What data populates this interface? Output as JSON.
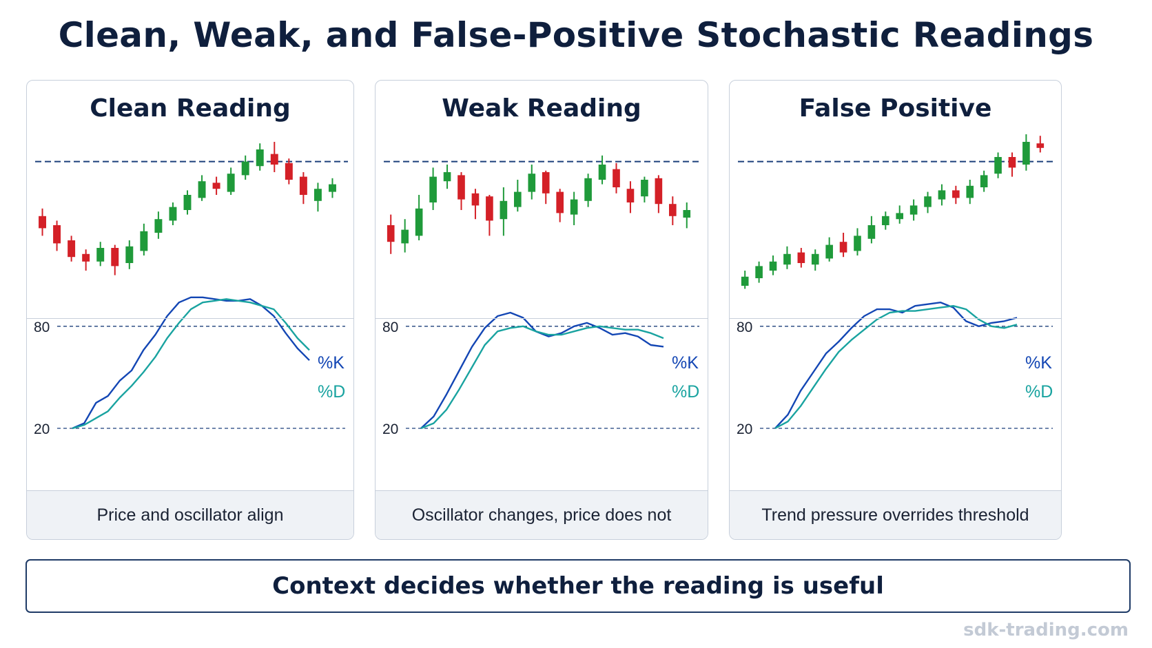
{
  "title": "Clean, Weak, and False-Positive Stochastic Readings",
  "banner": "Context decides whether the reading is useful",
  "watermark": "sdk-trading.com",
  "colors": {
    "bull": "#1f9a3a",
    "bear": "#d42027",
    "k_line": "#1346b4",
    "d_line": "#19a3a0",
    "dashed": "#1b3f7a"
  },
  "chart_data": [
    {
      "type": "candlestick+line",
      "title": "Clean Reading",
      "caption": "Price and oscillator align",
      "price_resistance": 92,
      "price_ylim": [
        0,
        100
      ],
      "candles": [
        {
          "o": 56,
          "c": 48,
          "h": 61,
          "l": 43
        },
        {
          "o": 50,
          "c": 38,
          "h": 53,
          "l": 33
        },
        {
          "o": 40,
          "c": 29,
          "h": 43,
          "l": 26
        },
        {
          "o": 31,
          "c": 26,
          "h": 34,
          "l": 20
        },
        {
          "o": 26,
          "c": 35,
          "h": 39,
          "l": 23
        },
        {
          "o": 35,
          "c": 23,
          "h": 37,
          "l": 17
        },
        {
          "o": 25,
          "c": 36,
          "h": 40,
          "l": 21
        },
        {
          "o": 33,
          "c": 46,
          "h": 51,
          "l": 30
        },
        {
          "o": 45,
          "c": 54,
          "h": 59,
          "l": 41
        },
        {
          "o": 53,
          "c": 62,
          "h": 65,
          "l": 50
        },
        {
          "o": 60,
          "c": 70,
          "h": 73,
          "l": 57
        },
        {
          "o": 68,
          "c": 79,
          "h": 83,
          "l": 66
        },
        {
          "o": 78,
          "c": 74,
          "h": 82,
          "l": 70
        },
        {
          "o": 72,
          "c": 84,
          "h": 88,
          "l": 70
        },
        {
          "o": 83,
          "c": 92,
          "h": 96,
          "l": 80
        },
        {
          "o": 89,
          "c": 100,
          "h": 104,
          "l": 86
        },
        {
          "o": 97,
          "c": 90,
          "h": 105,
          "l": 85
        },
        {
          "o": 91,
          "c": 80,
          "h": 94,
          "l": 77
        },
        {
          "o": 82,
          "c": 70,
          "h": 85,
          "l": 64
        },
        {
          "o": 66,
          "c": 74,
          "h": 78,
          "l": 59
        },
        {
          "o": 72,
          "c": 77,
          "h": 81,
          "l": 68
        }
      ],
      "osc_levels": [
        80,
        20
      ],
      "series": [
        {
          "name": "%K",
          "values": [
            20,
            23,
            35,
            39,
            48,
            54,
            66,
            75,
            86,
            94,
            97,
            97,
            96,
            95,
            95,
            96,
            92,
            86,
            76,
            67,
            60
          ]
        },
        {
          "name": "%D",
          "values": [
            20,
            22,
            26,
            30,
            38,
            45,
            53,
            62,
            73,
            82,
            90,
            94,
            95,
            96,
            95,
            94,
            92,
            90,
            82,
            73,
            66
          ]
        }
      ]
    },
    {
      "type": "candlestick+line",
      "title": "Weak Reading",
      "caption": "Oscillator changes, price does not",
      "price_resistance": 92,
      "price_ylim": [
        0,
        100
      ],
      "candles": [
        {
          "o": 50,
          "c": 39,
          "h": 57,
          "l": 31
        },
        {
          "o": 38,
          "c": 47,
          "h": 54,
          "l": 32
        },
        {
          "o": 43,
          "c": 61,
          "h": 70,
          "l": 40
        },
        {
          "o": 65,
          "c": 82,
          "h": 88,
          "l": 60
        },
        {
          "o": 79,
          "c": 85,
          "h": 90,
          "l": 74
        },
        {
          "o": 83,
          "c": 67,
          "h": 85,
          "l": 60
        },
        {
          "o": 71,
          "c": 63,
          "h": 74,
          "l": 54
        },
        {
          "o": 69,
          "c": 53,
          "h": 70,
          "l": 43
        },
        {
          "o": 54,
          "c": 66,
          "h": 75,
          "l": 43
        },
        {
          "o": 62,
          "c": 72,
          "h": 80,
          "l": 59
        },
        {
          "o": 72,
          "c": 84,
          "h": 90,
          "l": 67
        },
        {
          "o": 85,
          "c": 71,
          "h": 86,
          "l": 64
        },
        {
          "o": 72,
          "c": 58,
          "h": 74,
          "l": 52
        },
        {
          "o": 57,
          "c": 67,
          "h": 72,
          "l": 50
        },
        {
          "o": 66,
          "c": 81,
          "h": 84,
          "l": 62
        },
        {
          "o": 80,
          "c": 90,
          "h": 96,
          "l": 77
        },
        {
          "o": 87,
          "c": 75,
          "h": 91,
          "l": 71
        },
        {
          "o": 74,
          "c": 65,
          "h": 79,
          "l": 58
        },
        {
          "o": 69,
          "c": 80,
          "h": 82,
          "l": 65
        },
        {
          "o": 81,
          "c": 64,
          "h": 83,
          "l": 58
        },
        {
          "o": 64,
          "c": 56,
          "h": 69,
          "l": 50
        },
        {
          "o": 55,
          "c": 60,
          "h": 65,
          "l": 48
        }
      ],
      "osc_levels": [
        80,
        20
      ],
      "series": [
        {
          "name": "%K",
          "values": [
            20,
            27,
            40,
            54,
            68,
            79,
            86,
            88,
            85,
            77,
            74,
            76,
            80,
            82,
            79,
            75,
            76,
            74,
            69,
            68
          ]
        },
        {
          "name": "%D",
          "values": [
            20,
            23,
            31,
            43,
            56,
            69,
            77,
            79,
            80,
            77,
            75,
            75,
            77,
            79,
            80,
            79,
            78,
            78,
            76,
            73
          ]
        }
      ]
    },
    {
      "type": "candlestick+line",
      "title": "False Positive",
      "caption": "Trend pressure overrides threshold",
      "price_resistance": 92,
      "price_ylim": [
        0,
        100
      ],
      "candles": [
        {
          "o": 10,
          "c": 16,
          "h": 20,
          "l": 8
        },
        {
          "o": 15,
          "c": 23,
          "h": 26,
          "l": 12
        },
        {
          "o": 20,
          "c": 26,
          "h": 30,
          "l": 17
        },
        {
          "o": 24,
          "c": 31,
          "h": 36,
          "l": 21
        },
        {
          "o": 32,
          "c": 25,
          "h": 35,
          "l": 22
        },
        {
          "o": 24,
          "c": 31,
          "h": 34,
          "l": 20
        },
        {
          "o": 28,
          "c": 37,
          "h": 42,
          "l": 26
        },
        {
          "o": 39,
          "c": 32,
          "h": 45,
          "l": 29
        },
        {
          "o": 33,
          "c": 43,
          "h": 48,
          "l": 30
        },
        {
          "o": 41,
          "c": 50,
          "h": 56,
          "l": 38
        },
        {
          "o": 50,
          "c": 56,
          "h": 59,
          "l": 47
        },
        {
          "o": 54,
          "c": 58,
          "h": 63,
          "l": 51
        },
        {
          "o": 57,
          "c": 63,
          "h": 67,
          "l": 53
        },
        {
          "o": 62,
          "c": 69,
          "h": 72,
          "l": 58
        },
        {
          "o": 67,
          "c": 73,
          "h": 77,
          "l": 63
        },
        {
          "o": 73,
          "c": 68,
          "h": 76,
          "l": 64
        },
        {
          "o": 68,
          "c": 76,
          "h": 80,
          "l": 64
        },
        {
          "o": 75,
          "c": 83,
          "h": 86,
          "l": 72
        },
        {
          "o": 84,
          "c": 95,
          "h": 98,
          "l": 81
        },
        {
          "o": 95,
          "c": 88,
          "h": 98,
          "l": 82
        },
        {
          "o": 90,
          "c": 105,
          "h": 110,
          "l": 86
        },
        {
          "o": 104,
          "c": 101,
          "h": 109,
          "l": 98
        }
      ],
      "osc_levels": [
        80,
        20
      ],
      "series": [
        {
          "name": "%K",
          "values": [
            20,
            28,
            42,
            53,
            64,
            71,
            79,
            86,
            90,
            90,
            88,
            92,
            93,
            94,
            91,
            83,
            80,
            82,
            83,
            85
          ]
        },
        {
          "name": "%D",
          "values": [
            20,
            24,
            33,
            44,
            55,
            65,
            72,
            78,
            84,
            88,
            89,
            89,
            90,
            91,
            92,
            90,
            84,
            80,
            79,
            81
          ]
        }
      ]
    }
  ]
}
